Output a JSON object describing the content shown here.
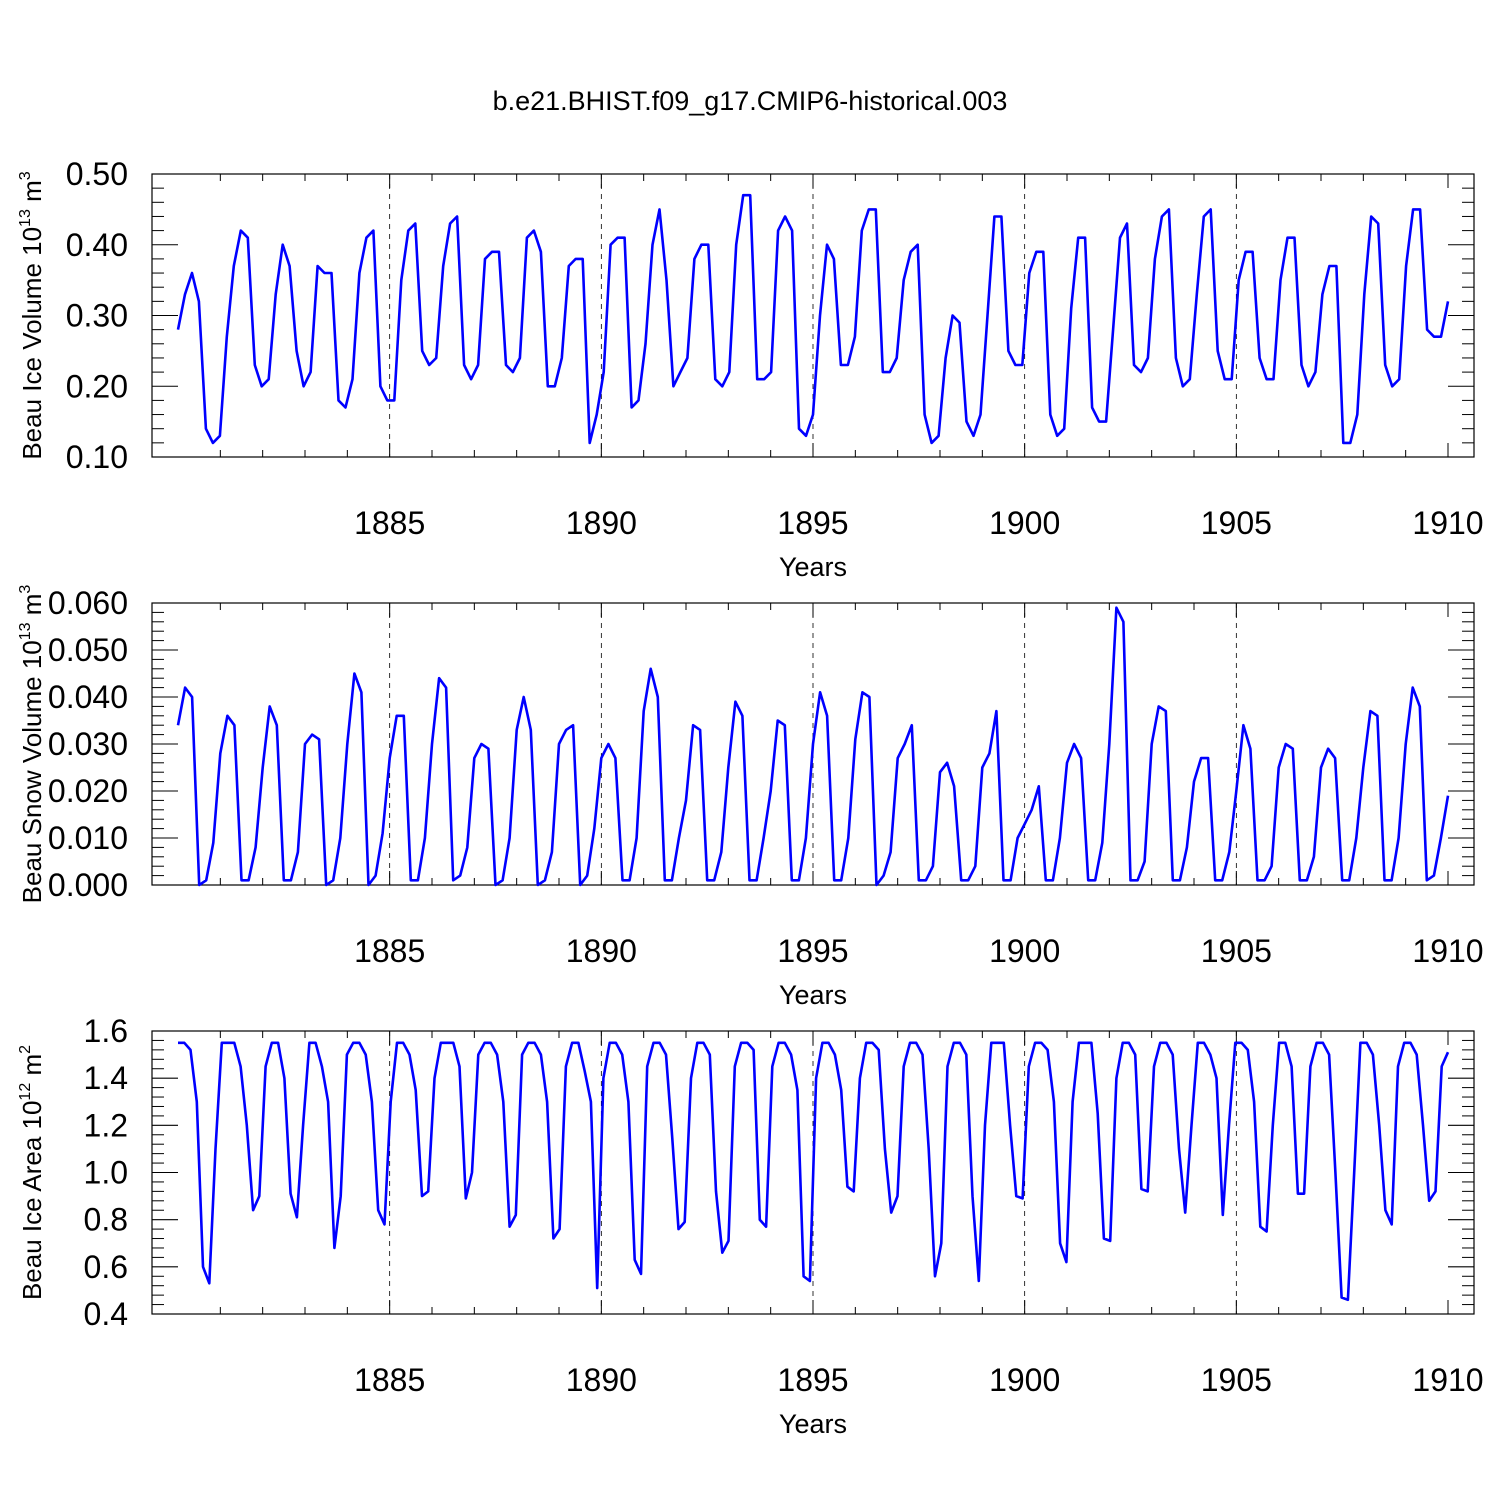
{
  "title": "b.e21.BHIST.f09_g17.CMIP6-historical.003",
  "colors": {
    "line": "#0000ff",
    "axis": "#000000",
    "grid": "#000000"
  },
  "chart_data": [
    {
      "type": "line",
      "name": "ice-volume",
      "ylabel_main": "Beau Ice Volume 10",
      "ylabel_exp": "13",
      "ylabel_unit": " m",
      "ylabel_unit_exp": "3",
      "xlabel": "Years",
      "xlim": [
        1880,
        1910
      ],
      "ylim": [
        0.1,
        0.5
      ],
      "yticks": [
        "0.10",
        "0.20",
        "0.30",
        "0.40",
        "0.50"
      ],
      "xticks": [
        "1885",
        "1890",
        "1895",
        "1900",
        "1905",
        "1910"
      ],
      "series": [
        {
          "name": "Beau Ice Volume",
          "values": [
            0.28,
            0.33,
            0.36,
            0.32,
            0.14,
            0.12,
            0.13,
            0.27,
            0.37,
            0.42,
            0.41,
            0.23,
            0.2,
            0.21,
            0.33,
            0.4,
            0.37,
            0.25,
            0.2,
            0.22,
            0.37,
            0.36,
            0.36,
            0.18,
            0.17,
            0.21,
            0.36,
            0.41,
            0.42,
            0.2,
            0.18,
            0.18,
            0.35,
            0.42,
            0.43,
            0.25,
            0.23,
            0.24,
            0.37,
            0.43,
            0.44,
            0.23,
            0.21,
            0.23,
            0.38,
            0.39,
            0.39,
            0.23,
            0.22,
            0.24,
            0.41,
            0.42,
            0.39,
            0.2,
            0.2,
            0.24,
            0.37,
            0.38,
            0.38,
            0.12,
            0.16,
            0.22,
            0.4,
            0.41,
            0.41,
            0.17,
            0.18,
            0.26,
            0.4,
            0.45,
            0.35,
            0.2,
            0.22,
            0.24,
            0.38,
            0.4,
            0.4,
            0.21,
            0.2,
            0.22,
            0.4,
            0.47,
            0.47,
            0.21,
            0.21,
            0.22,
            0.42,
            0.44,
            0.42,
            0.14,
            0.13,
            0.16,
            0.3,
            0.4,
            0.38,
            0.23,
            0.23,
            0.27,
            0.42,
            0.45,
            0.45,
            0.22,
            0.22,
            0.24,
            0.35,
            0.39,
            0.4,
            0.16,
            0.12,
            0.13,
            0.24,
            0.3,
            0.29,
            0.15,
            0.13,
            0.16,
            0.3,
            0.44,
            0.44,
            0.25,
            0.23,
            0.23,
            0.36,
            0.39,
            0.39,
            0.16,
            0.13,
            0.14,
            0.31,
            0.41,
            0.41,
            0.17,
            0.15,
            0.15,
            0.28,
            0.41,
            0.43,
            0.23,
            0.22,
            0.24,
            0.38,
            0.44,
            0.45,
            0.24,
            0.2,
            0.21,
            0.33,
            0.44,
            0.45,
            0.25,
            0.21,
            0.21,
            0.35,
            0.39,
            0.39,
            0.24,
            0.21,
            0.21,
            0.35,
            0.41,
            0.41,
            0.23,
            0.2,
            0.22,
            0.33,
            0.37,
            0.37,
            0.12,
            0.12,
            0.16,
            0.33,
            0.44,
            0.43,
            0.23,
            0.2,
            0.21,
            0.37,
            0.45,
            0.45,
            0.28,
            0.27,
            0.27,
            0.32
          ]
        }
      ]
    },
    {
      "type": "line",
      "name": "snow-volume",
      "ylabel_main": "Beau Snow Volume 10",
      "ylabel_exp": "13",
      "ylabel_unit": " m",
      "ylabel_unit_exp": "3",
      "xlabel": "Years",
      "xlim": [
        1880,
        1910
      ],
      "ylim": [
        0.0,
        0.06
      ],
      "yticks": [
        "0.000",
        "0.010",
        "0.020",
        "0.030",
        "0.040",
        "0.050",
        "0.060"
      ],
      "xticks": [
        "1885",
        "1890",
        "1895",
        "1900",
        "1905",
        "1910"
      ],
      "series": [
        {
          "name": "Beau Snow Volume",
          "values": [
            0.034,
            0.042,
            0.04,
            0.0,
            0.001,
            0.009,
            0.028,
            0.036,
            0.034,
            0.001,
            0.001,
            0.008,
            0.025,
            0.038,
            0.034,
            0.001,
            0.001,
            0.007,
            0.03,
            0.032,
            0.031,
            0.0,
            0.001,
            0.01,
            0.03,
            0.045,
            0.041,
            0.0,
            0.002,
            0.011,
            0.027,
            0.036,
            0.036,
            0.001,
            0.001,
            0.01,
            0.03,
            0.044,
            0.042,
            0.001,
            0.002,
            0.008,
            0.027,
            0.03,
            0.029,
            0.0,
            0.001,
            0.01,
            0.033,
            0.04,
            0.033,
            0.0,
            0.001,
            0.007,
            0.03,
            0.033,
            0.034,
            0.0,
            0.002,
            0.012,
            0.027,
            0.03,
            0.027,
            0.001,
            0.001,
            0.01,
            0.037,
            0.046,
            0.04,
            0.001,
            0.001,
            0.01,
            0.018,
            0.034,
            0.033,
            0.001,
            0.001,
            0.007,
            0.025,
            0.039,
            0.036,
            0.001,
            0.001,
            0.01,
            0.02,
            0.035,
            0.034,
            0.001,
            0.001,
            0.01,
            0.03,
            0.041,
            0.036,
            0.001,
            0.001,
            0.01,
            0.031,
            0.041,
            0.04,
            0.0,
            0.002,
            0.007,
            0.027,
            0.03,
            0.034,
            0.001,
            0.001,
            0.004,
            0.024,
            0.026,
            0.021,
            0.001,
            0.001,
            0.004,
            0.025,
            0.028,
            0.037,
            0.001,
            0.001,
            0.01,
            0.013,
            0.016,
            0.021,
            0.001,
            0.001,
            0.01,
            0.026,
            0.03,
            0.027,
            0.001,
            0.001,
            0.009,
            0.03,
            0.059,
            0.056,
            0.001,
            0.001,
            0.005,
            0.03,
            0.038,
            0.037,
            0.001,
            0.001,
            0.008,
            0.022,
            0.027,
            0.027,
            0.001,
            0.001,
            0.007,
            0.02,
            0.034,
            0.029,
            0.001,
            0.001,
            0.004,
            0.025,
            0.03,
            0.029,
            0.001,
            0.001,
            0.006,
            0.025,
            0.029,
            0.027,
            0.001,
            0.001,
            0.01,
            0.025,
            0.037,
            0.036,
            0.001,
            0.001,
            0.01,
            0.03,
            0.042,
            0.038,
            0.001,
            0.002,
            0.01,
            0.019
          ]
        }
      ]
    },
    {
      "type": "line",
      "name": "ice-area",
      "ylabel_main": "Beau Ice Area 10",
      "ylabel_exp": "12",
      "ylabel_unit": " m",
      "ylabel_unit_exp": "2",
      "xlabel": "Years",
      "xlim": [
        1880,
        1910
      ],
      "ylim": [
        0.4,
        1.6
      ],
      "yticks": [
        "0.4",
        "0.6",
        "0.8",
        "1.0",
        "1.2",
        "1.4",
        "1.6"
      ],
      "xticks": [
        "1885",
        "1890",
        "1895",
        "1900",
        "1905",
        "1910"
      ],
      "series": [
        {
          "name": "Beau Ice Area",
          "values": [
            1.55,
            1.55,
            1.52,
            1.3,
            0.6,
            0.53,
            1.1,
            1.55,
            1.55,
            1.55,
            1.45,
            1.2,
            0.84,
            0.9,
            1.45,
            1.55,
            1.55,
            1.4,
            0.91,
            0.81,
            1.2,
            1.55,
            1.55,
            1.45,
            1.3,
            0.68,
            0.9,
            1.5,
            1.55,
            1.55,
            1.5,
            1.3,
            0.84,
            0.78,
            1.3,
            1.55,
            1.55,
            1.5,
            1.35,
            0.9,
            0.92,
            1.4,
            1.55,
            1.55,
            1.55,
            1.45,
            0.89,
            1.0,
            1.5,
            1.55,
            1.55,
            1.5,
            1.3,
            0.77,
            0.82,
            1.5,
            1.55,
            1.55,
            1.5,
            1.3,
            0.72,
            0.76,
            1.45,
            1.55,
            1.55,
            1.43,
            1.3,
            0.51,
            1.4,
            1.55,
            1.55,
            1.5,
            1.3,
            0.63,
            0.57,
            1.45,
            1.55,
            1.55,
            1.5,
            1.15,
            0.76,
            0.79,
            1.4,
            1.55,
            1.55,
            1.5,
            0.92,
            0.66,
            0.71,
            1.45,
            1.55,
            1.55,
            1.52,
            0.8,
            0.77,
            1.45,
            1.55,
            1.55,
            1.5,
            1.35,
            0.56,
            0.54,
            1.4,
            1.55,
            1.55,
            1.5,
            1.35,
            0.94,
            0.92,
            1.4,
            1.55,
            1.55,
            1.52,
            1.1,
            0.83,
            0.9,
            1.45,
            1.55,
            1.55,
            1.5,
            1.1,
            0.56,
            0.7,
            1.45,
            1.55,
            1.55,
            1.5,
            0.9,
            0.54,
            1.2,
            1.55,
            1.55,
            1.55,
            1.2,
            0.9,
            0.89,
            1.45,
            1.55,
            1.55,
            1.52,
            1.3,
            0.7,
            0.62,
            1.3,
            1.55,
            1.55,
            1.55,
            1.25,
            0.72,
            0.71,
            1.4,
            1.55,
            1.55,
            1.5,
            0.93,
            0.92,
            1.45,
            1.55,
            1.55,
            1.5,
            1.1,
            0.83,
            1.2,
            1.55,
            1.55,
            1.5,
            1.4,
            0.82,
            1.2,
            1.55,
            1.55,
            1.52,
            1.3,
            0.77,
            0.75,
            1.2,
            1.55,
            1.55,
            1.45,
            0.91,
            0.91,
            1.45,
            1.55,
            1.55,
            1.5,
            1.0,
            0.47,
            0.46,
            1.0,
            1.55,
            1.55,
            1.5,
            1.2,
            0.84,
            0.78,
            1.45,
            1.55,
            1.55,
            1.5,
            1.2,
            0.88,
            0.92,
            1.45,
            1.51
          ]
        }
      ]
    }
  ]
}
